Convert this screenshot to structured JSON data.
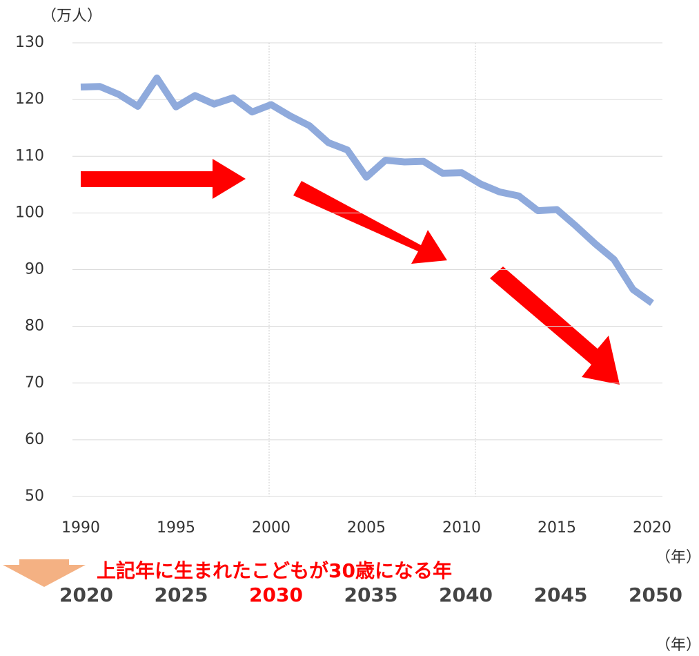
{
  "chart_data": {
    "type": "line",
    "y_unit": "（万人）",
    "x_unit": "（年）",
    "x": [
      1990,
      1991,
      1992,
      1993,
      1994,
      1995,
      1996,
      1997,
      1998,
      1999,
      2000,
      2001,
      2002,
      2003,
      2004,
      2005,
      2006,
      2007,
      2008,
      2009,
      2010,
      2011,
      2012,
      2013,
      2014,
      2015,
      2016,
      2017,
      2018,
      2019,
      2020
    ],
    "series": [
      {
        "name": null,
        "color": "#8faadc",
        "values": [
          122.2,
          122.3,
          120.9,
          118.8,
          123.8,
          118.7,
          120.7,
          119.2,
          120.3,
          117.8,
          119.1,
          117.1,
          115.4,
          112.4,
          111.1,
          106.3,
          109.3,
          109.0,
          109.1,
          107.0,
          107.1,
          105.1,
          103.7,
          103.0,
          100.4,
          100.6,
          97.7,
          94.6,
          91.8,
          86.5,
          84.1
        ]
      }
    ],
    "xlim": [
      1990,
      2020
    ],
    "xticks": [
      1990,
      1995,
      2000,
      2005,
      2010,
      2015,
      2020
    ],
    "ylim": [
      50,
      130
    ],
    "yticks": [
      50,
      60,
      70,
      80,
      90,
      100,
      110,
      120,
      130
    ],
    "grid": true,
    "annotation": "上記年に生まれたこどもが30歳になる年",
    "annotation_color": "#ff0000",
    "secondary_labels": [
      "2020",
      "2025",
      "2030",
      "2035",
      "2040",
      "2045",
      "2050"
    ],
    "secondary_highlight": 2,
    "secondary_highlight_color": "#ff0000",
    "secondary_unit": "（年）"
  }
}
